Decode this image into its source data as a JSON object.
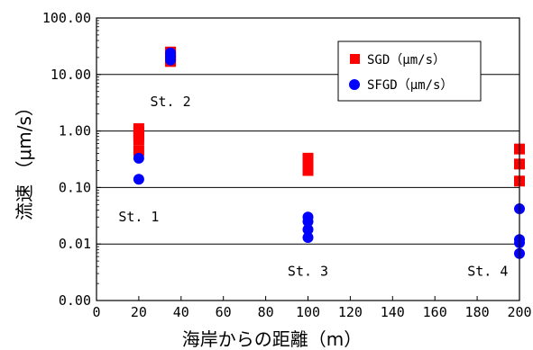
{
  "chart_data": {
    "type": "scatter",
    "title": "",
    "xlabel": "海岸からの距離（m）",
    "ylabel": "流速 （μm/s）",
    "xlim": [
      0,
      200
    ],
    "ylim": [
      0.001,
      100
    ],
    "yscale": "log",
    "grid": "horizontal",
    "legend_position": "top-right",
    "x_ticks": [
      "0",
      "20",
      "40",
      "60",
      "80",
      "100",
      "120",
      "140",
      "160",
      "180",
      "200"
    ],
    "y_ticks": [
      {
        "value": 100,
        "label": "100.00"
      },
      {
        "value": 10,
        "label": "10.00"
      },
      {
        "value": 1,
        "label": "1.00"
      },
      {
        "value": 0.1,
        "label": "0.10"
      },
      {
        "value": 0.01,
        "label": "0.01"
      },
      {
        "value": 0.001,
        "label": "0.00"
      }
    ],
    "series": [
      {
        "name": "SGD（μm/s）",
        "marker": "square",
        "color": "#ff0000",
        "points": [
          {
            "x": 20,
            "y": 1.1
          },
          {
            "x": 20,
            "y": 0.95
          },
          {
            "x": 20,
            "y": 0.82
          },
          {
            "x": 20,
            "y": 0.7
          },
          {
            "x": 20,
            "y": 0.45
          },
          {
            "x": 35,
            "y": 25
          },
          {
            "x": 35,
            "y": 22
          },
          {
            "x": 35,
            "y": 19
          },
          {
            "x": 35,
            "y": 17
          },
          {
            "x": 100,
            "y": 0.33
          },
          {
            "x": 100,
            "y": 0.28
          },
          {
            "x": 100,
            "y": 0.24
          },
          {
            "x": 100,
            "y": 0.2
          },
          {
            "x": 200,
            "y": 0.48
          },
          {
            "x": 200,
            "y": 0.26
          },
          {
            "x": 200,
            "y": 0.13
          }
        ]
      },
      {
        "name": "SFGD（μm/s）",
        "marker": "circle",
        "color": "#0000ff",
        "points": [
          {
            "x": 20,
            "y": 0.33
          },
          {
            "x": 20,
            "y": 0.14
          },
          {
            "x": 35,
            "y": 24
          },
          {
            "x": 35,
            "y": 21
          },
          {
            "x": 35,
            "y": 18
          },
          {
            "x": 100,
            "y": 0.03
          },
          {
            "x": 100,
            "y": 0.025
          },
          {
            "x": 100,
            "y": 0.018
          },
          {
            "x": 100,
            "y": 0.013
          },
          {
            "x": 200,
            "y": 0.042
          },
          {
            "x": 200,
            "y": 0.012
          },
          {
            "x": 200,
            "y": 0.0105
          },
          {
            "x": 200,
            "y": 0.0068
          }
        ]
      }
    ],
    "annotations": [
      {
        "text": "St. 2",
        "x": 35,
        "y": 3.3
      },
      {
        "text": "St. 1",
        "x": 20,
        "y": 0.03
      },
      {
        "text": "St. 3",
        "x": 100,
        "y": 0.0033
      },
      {
        "text": "St. 4",
        "x": 185,
        "y": 0.0033
      }
    ]
  }
}
